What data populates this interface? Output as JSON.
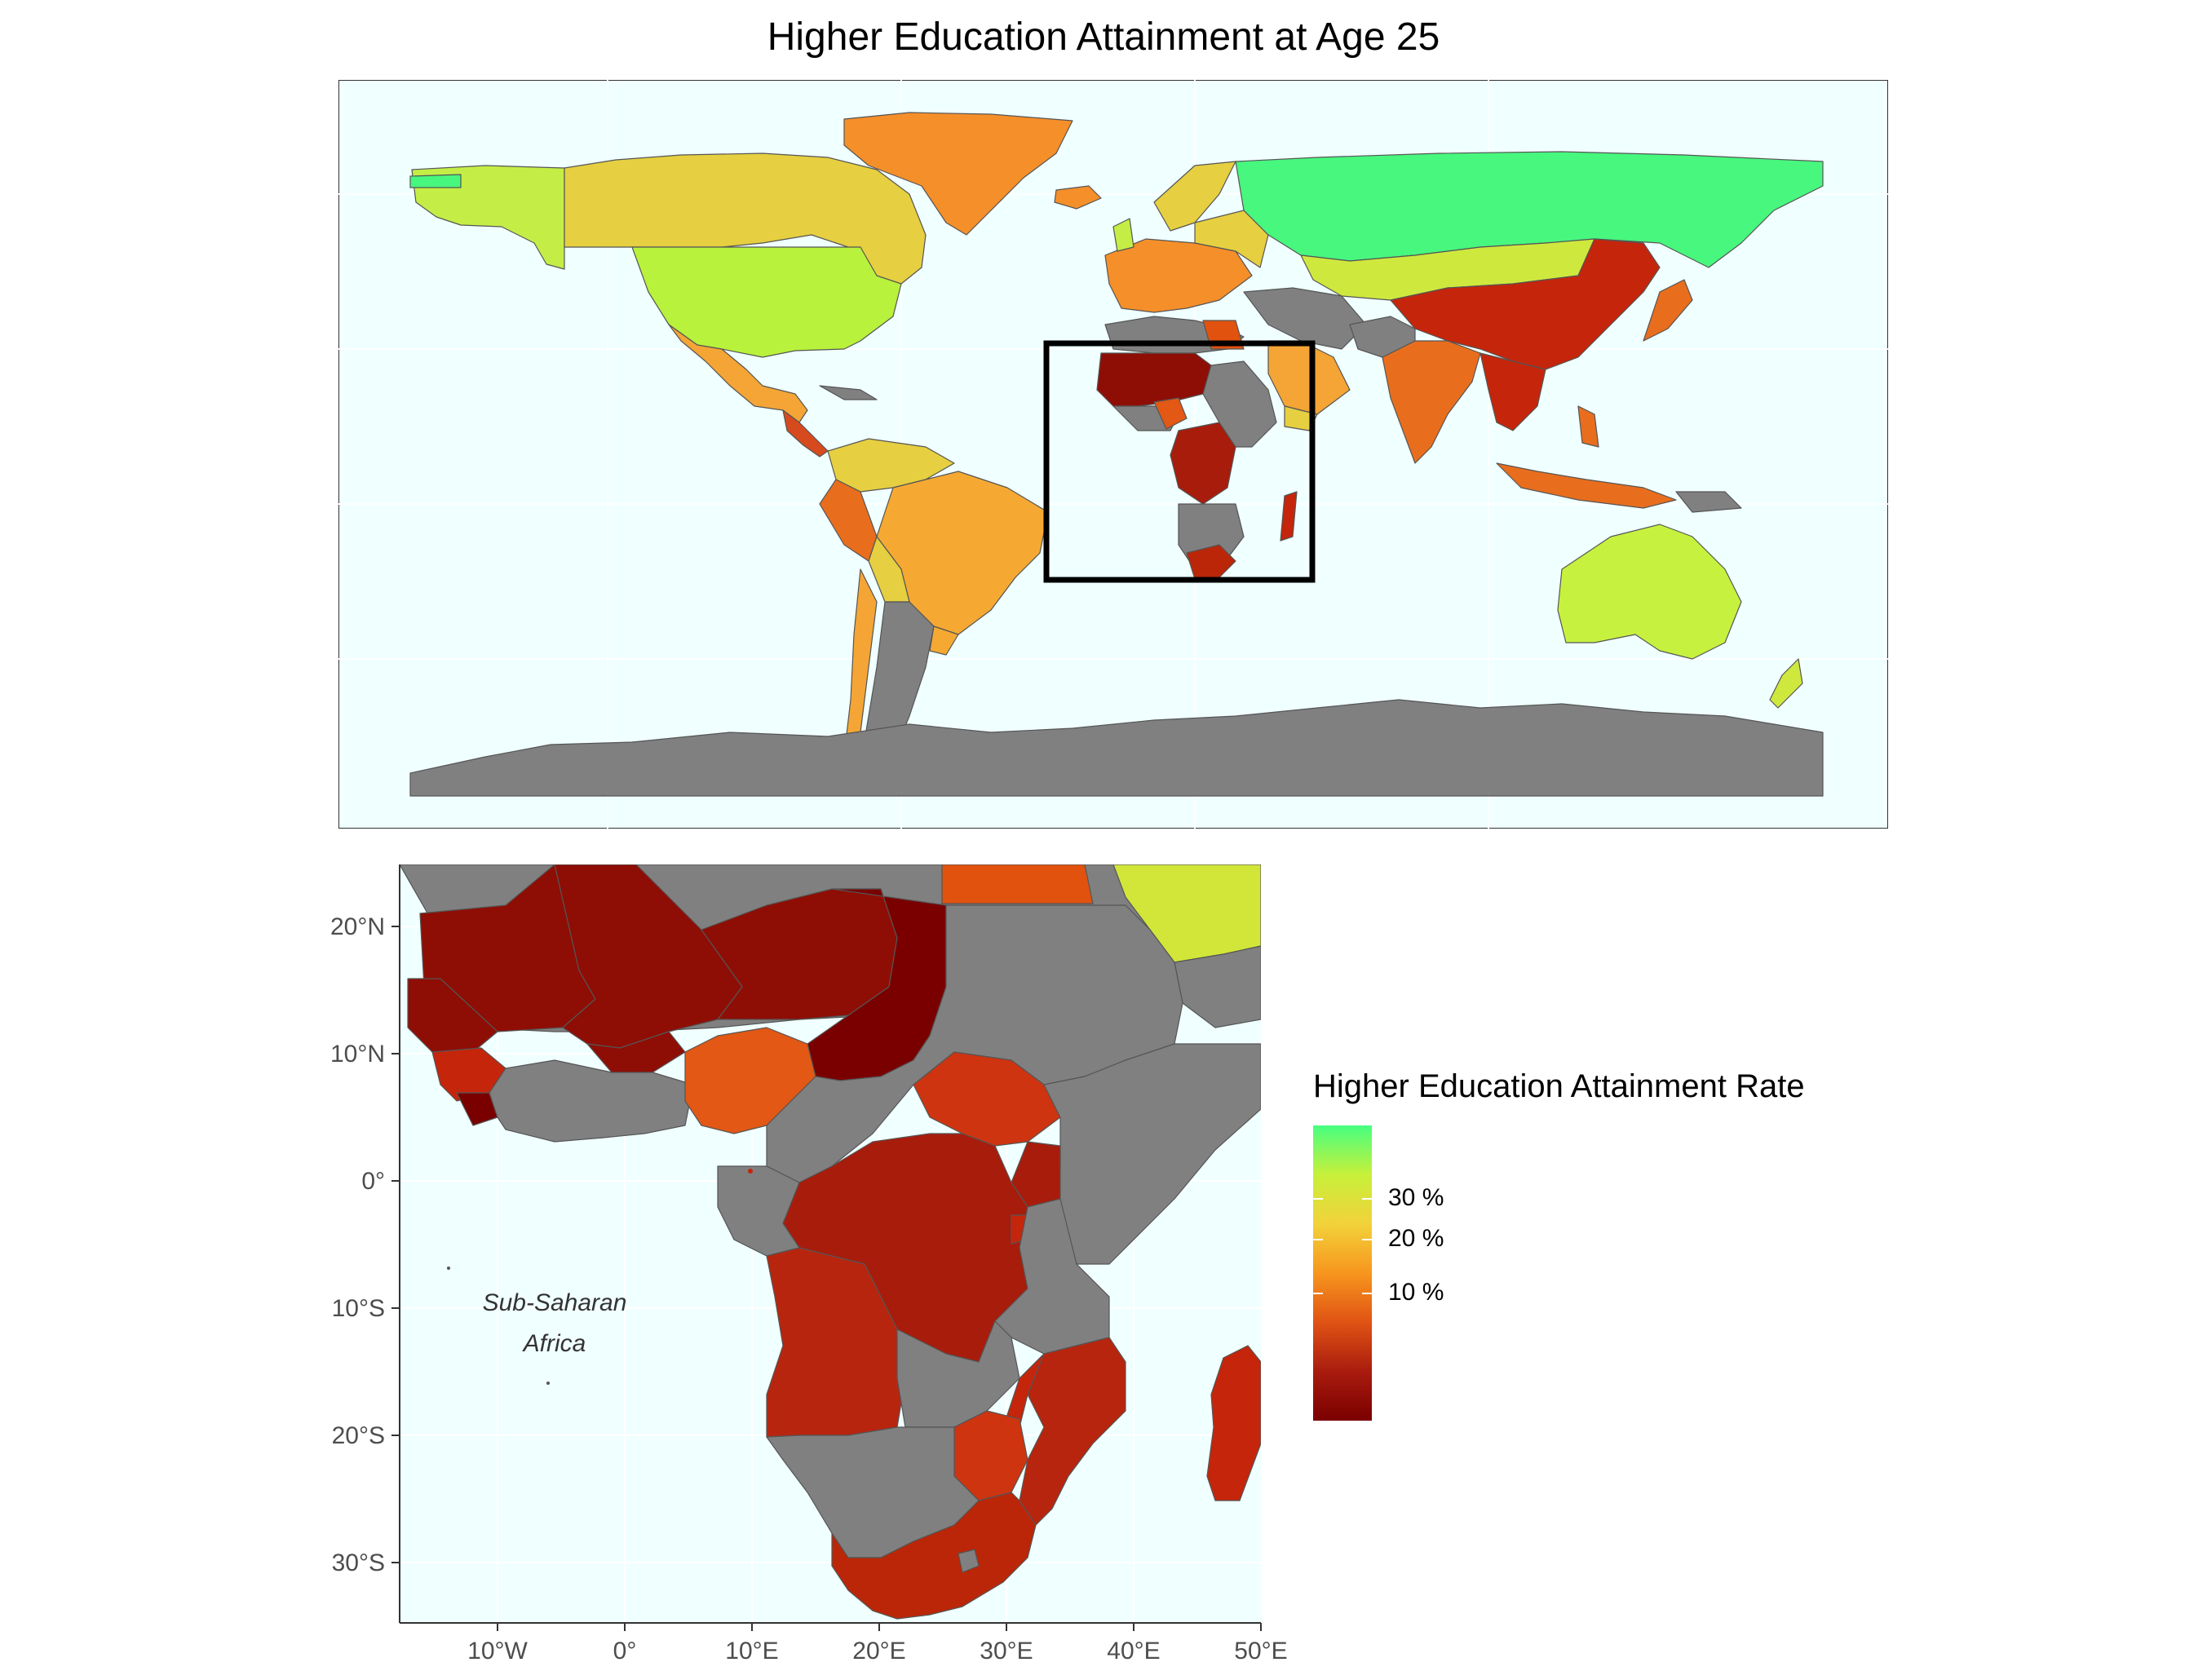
{
  "title": "Higher Education Attainment at Age 25",
  "inset": {
    "region_label_line1": "Sub-Saharan",
    "region_label_line2": "Africa",
    "lat_ticks": [
      "20°N",
      "10°N",
      "0°",
      "10°S",
      "20°S",
      "30°S"
    ],
    "lon_ticks": [
      "10°W",
      "0°",
      "10°E",
      "20°E",
      "30°E",
      "40°E",
      "50°E"
    ]
  },
  "legend": {
    "title": "Higher Education Attainment Rate",
    "labels": [
      "30 %",
      "20 %",
      "10 %"
    ],
    "colors": [
      "#47FF80",
      "#C7F03A",
      "#F2D23A",
      "#F7961E",
      "#E05314",
      "#A91C0E",
      "#7A0000"
    ]
  },
  "colors": {
    "ocean": "#F0FFFF",
    "no_data": "#808080",
    "russia": "#47F77E",
    "canada": "#E6CF40",
    "usa": "#B8F23C",
    "greenland": "#F58F2A",
    "alaska": "#C4EE46",
    "mexico": "#F4A535",
    "south_america_high": "#F5A933",
    "china": "#C5250B",
    "india": "#E86E1E",
    "australia": "#C6F23F",
    "kazakhstan": "#CFE83E",
    "sahel": "#8E0E05",
    "chad": "#7A0000",
    "nigeria": "#E25814",
    "south_sudan": "#CE3410",
    "drc": "#A81C0C",
    "angola": "#B8250E",
    "south_africa": "#BB2608",
    "saudi": "#D2E63A",
    "egypt": "#E1520E"
  }
}
